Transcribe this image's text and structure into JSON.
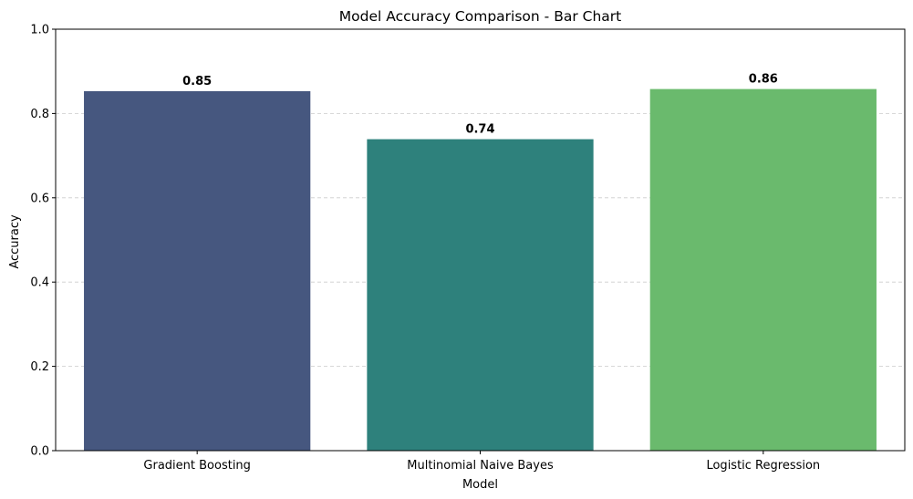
{
  "chart_data": {
    "type": "bar",
    "title": "Model Accuracy Comparison - Bar Chart",
    "xlabel": "Model",
    "ylabel": "Accuracy",
    "categories": [
      "Gradient Boosting",
      "Multinomial Naive Bayes",
      "Logistic Regression"
    ],
    "values": [
      0.853,
      0.739,
      0.858
    ],
    "value_labels": [
      "0.85",
      "0.74",
      "0.86"
    ],
    "colors": [
      "#46577f",
      "#2e817c",
      "#6aba6d"
    ],
    "ylim": [
      0,
      1
    ],
    "yticks": [
      0.0,
      0.2,
      0.4,
      0.6,
      0.8,
      1.0
    ],
    "ytick_labels": [
      "0.0",
      "0.2",
      "0.4",
      "0.6",
      "0.8",
      "1.0"
    ],
    "grid": {
      "axis": "y",
      "style": "dashed",
      "color": "#cccccc"
    },
    "legend": "none"
  }
}
